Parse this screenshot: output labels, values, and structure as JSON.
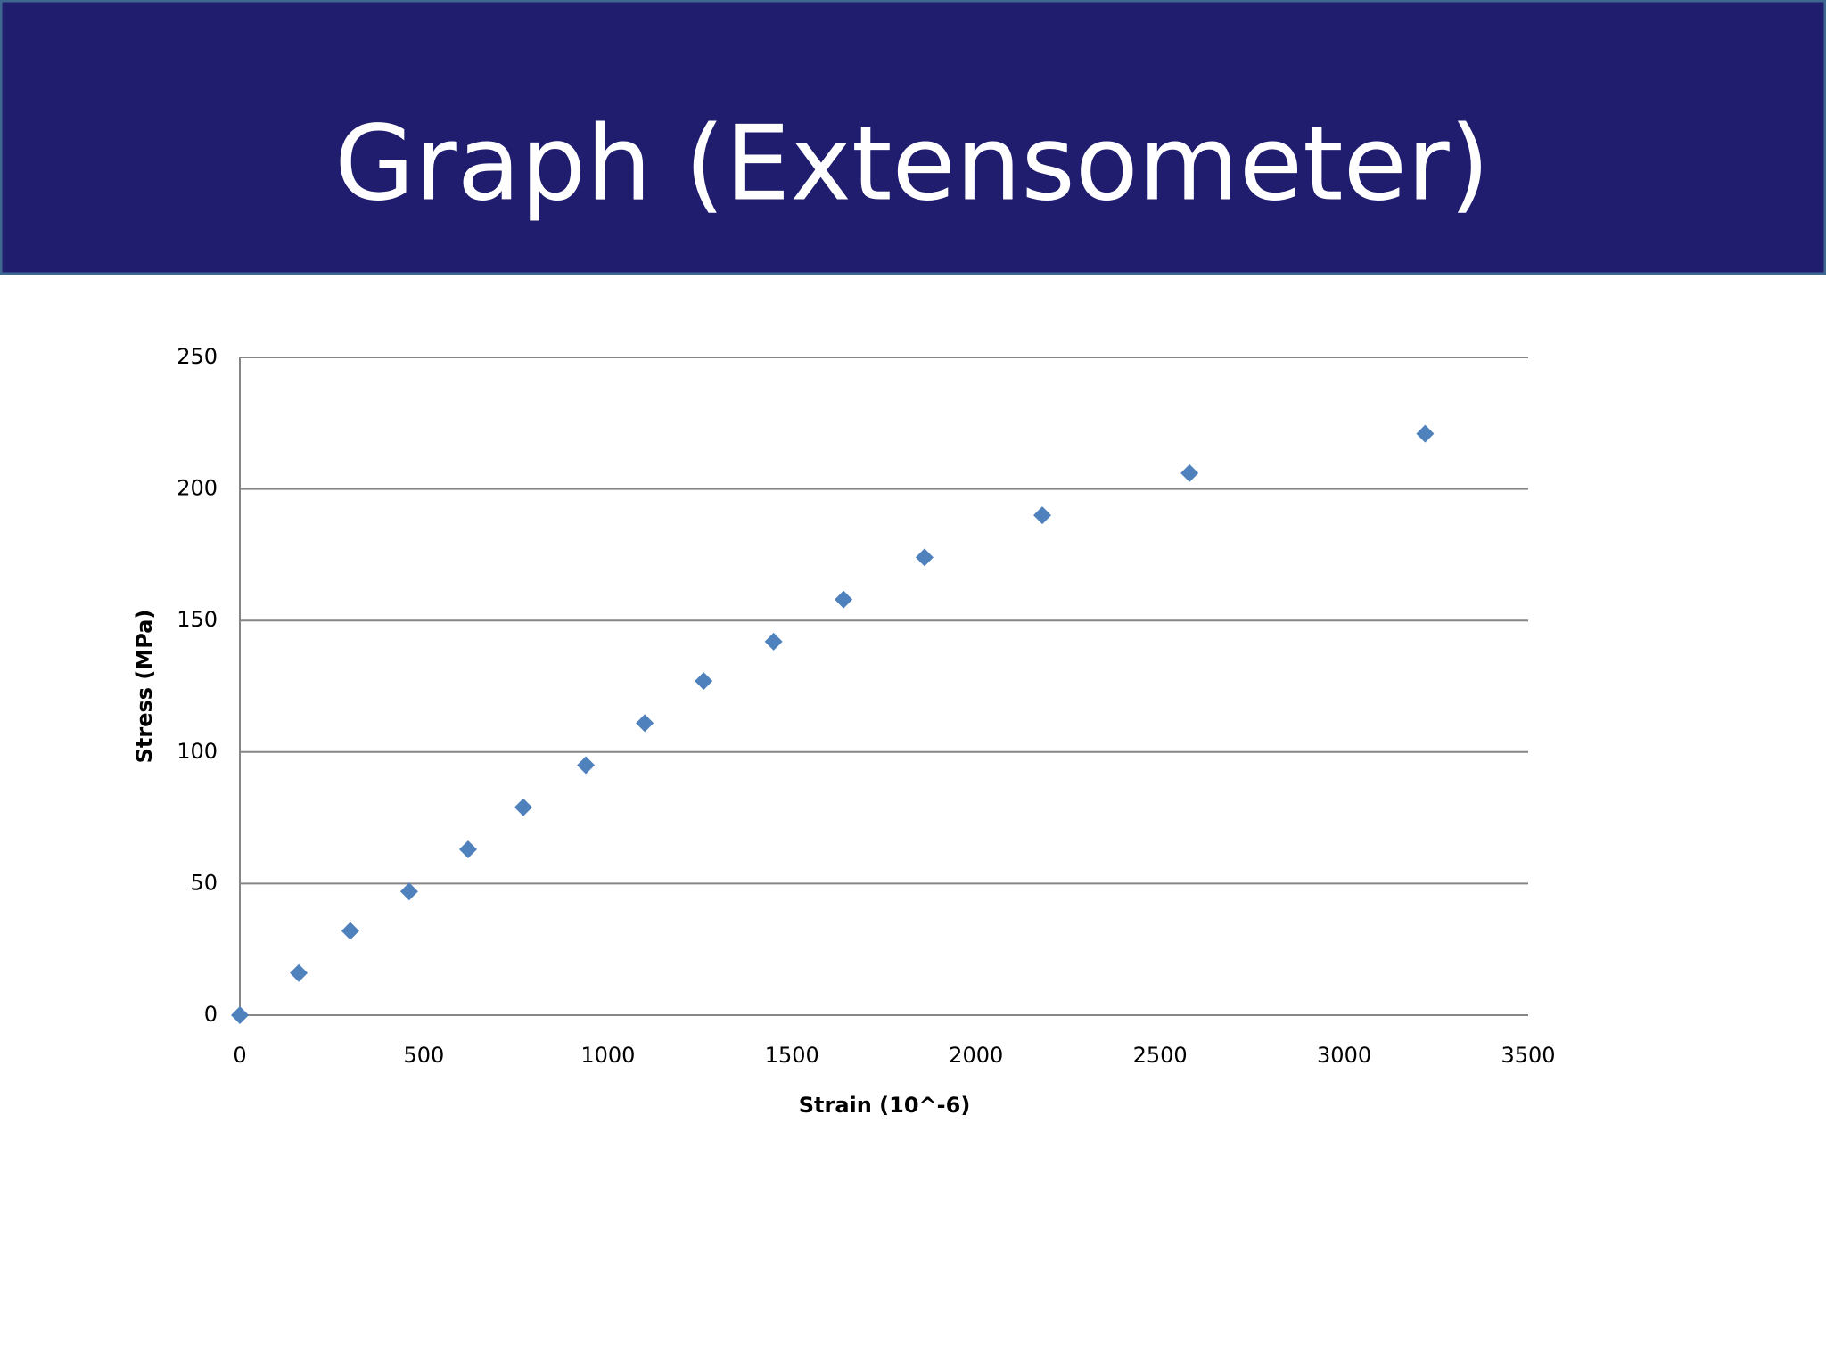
{
  "chart_data": {
    "type": "scatter",
    "title": "Graph (Extensometer)",
    "xlabel": "Strain   (10^-6)",
    "ylabel": "Stress   (MPa)",
    "series": [
      {
        "name": "Stress",
        "color": "#4f81bd",
        "x": [
          0,
          160,
          300,
          460,
          620,
          770,
          940,
          1100,
          1260,
          1450,
          1640,
          1860,
          2180,
          2580,
          3220
        ],
        "values": [
          0,
          16,
          32,
          47,
          63,
          79,
          95,
          111,
          127,
          142,
          158,
          174,
          190,
          206,
          221
        ]
      }
    ],
    "xlim": [
      0,
      3500
    ],
    "xticks": [
      0,
      500,
      1000,
      1500,
      2000,
      2500,
      3000,
      3500
    ],
    "ylim": [
      0,
      250
    ],
    "yticks": [
      0,
      50,
      100,
      150,
      200,
      250
    ],
    "grid": true
  }
}
